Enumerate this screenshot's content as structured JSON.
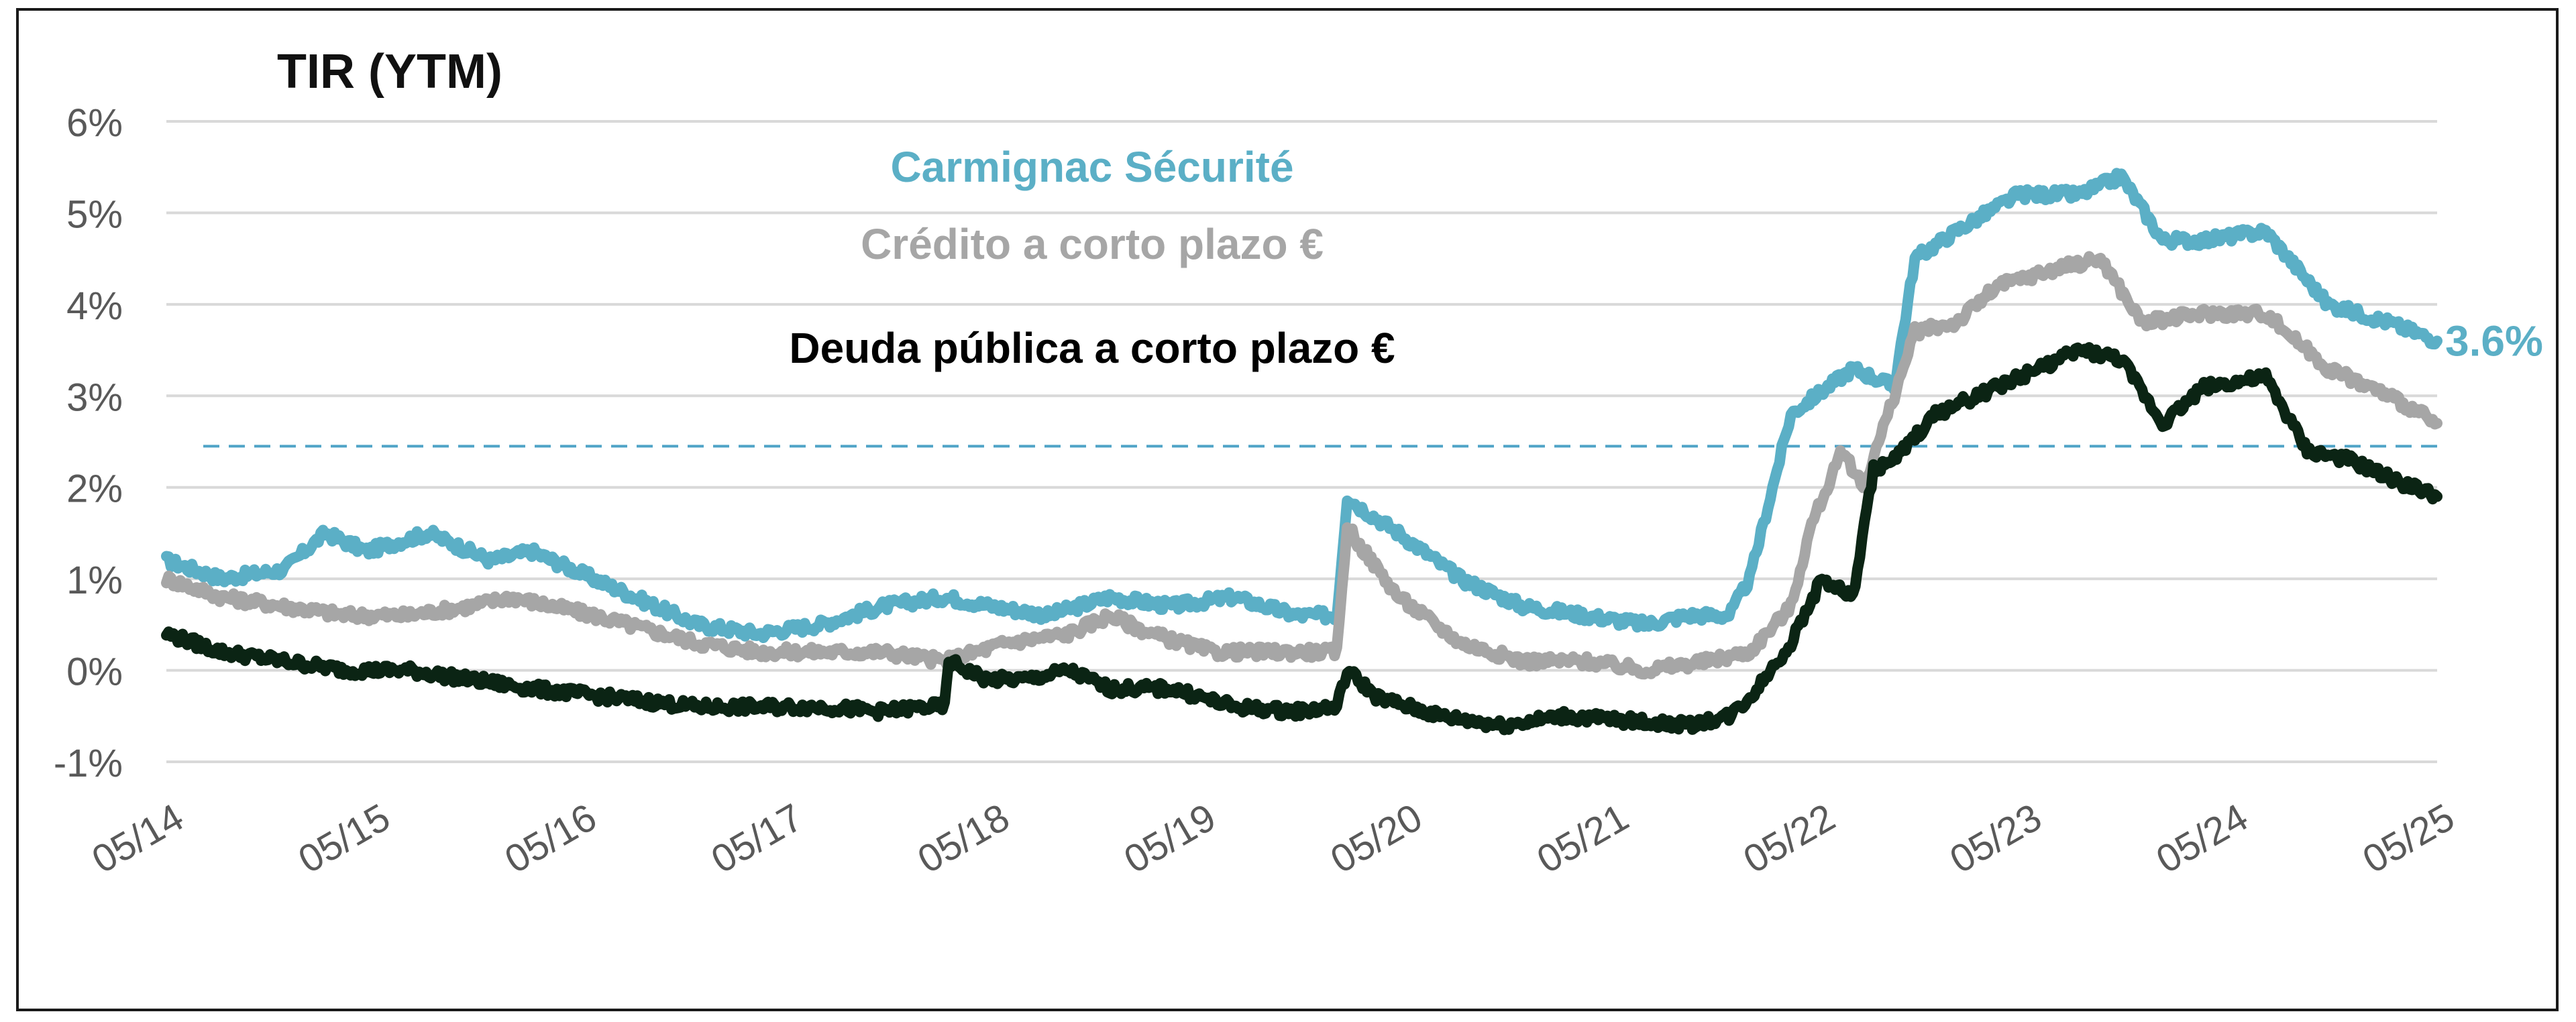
{
  "chart_data": {
    "type": "line",
    "title": "TIR (YTM)",
    "xlabel": "",
    "ylabel": "",
    "x_ticks": [
      "05/14",
      "05/15",
      "05/16",
      "05/17",
      "05/18",
      "05/19",
      "05/20",
      "05/21",
      "05/22",
      "05/23",
      "05/24",
      "05/25"
    ],
    "y_ticks": [
      "-1%",
      "0%",
      "1%",
      "2%",
      "3%",
      "4%",
      "5%",
      "6%"
    ],
    "ylim": [
      -1,
      6
    ],
    "xlim": [
      2014.33,
      2025.33
    ],
    "grid": true,
    "reference_line": {
      "value": 2.45,
      "style": "dashed",
      "color": "#4fa3c7"
    },
    "end_label": "3.6%",
    "series": [
      {
        "name": "Carmignac Sécurité",
        "color": "#5bafc6",
        "x": [
          2014.33,
          2014.6,
          2014.9,
          2015.1,
          2015.3,
          2015.6,
          2015.9,
          2016.1,
          2016.5,
          2016.9,
          2017.2,
          2017.5,
          2017.8,
          2018.1,
          2018.33,
          2018.6,
          2018.9,
          2019.2,
          2019.5,
          2019.8,
          2020.0,
          2020.05,
          2020.1,
          2020.3,
          2020.6,
          2020.9,
          2021.2,
          2021.5,
          2021.7,
          2021.9,
          2022.0,
          2022.2,
          2022.5,
          2022.7,
          2022.8,
          2023.0,
          2023.3,
          2023.6,
          2023.8,
          2024.0,
          2024.2,
          2024.5,
          2024.8,
          2025.1,
          2025.33
        ],
        "y": [
          1.2,
          1.0,
          1.1,
          1.5,
          1.3,
          1.5,
          1.2,
          1.3,
          0.9,
          0.5,
          0.4,
          0.5,
          0.7,
          0.8,
          0.7,
          0.6,
          0.8,
          0.7,
          0.8,
          0.6,
          0.6,
          1.9,
          1.8,
          1.5,
          1.0,
          0.7,
          0.6,
          0.5,
          0.6,
          0.6,
          1.0,
          2.8,
          3.3,
          3.1,
          4.5,
          4.8,
          5.2,
          5.2,
          5.4,
          4.7,
          4.7,
          4.8,
          4.0,
          3.8,
          3.6
        ]
      },
      {
        "name": "Crédito a corto plazo  €",
        "color": "#a6a6a6",
        "x": [
          2014.33,
          2014.6,
          2014.9,
          2015.2,
          2015.5,
          2015.8,
          2016.0,
          2016.4,
          2016.9,
          2017.2,
          2017.5,
          2017.8,
          2018.1,
          2018.4,
          2018.7,
          2018.9,
          2019.1,
          2019.4,
          2019.6,
          2019.8,
          2020.0,
          2020.05,
          2020.1,
          2020.3,
          2020.6,
          2020.9,
          2021.2,
          2021.5,
          2021.8,
          2022.0,
          2022.2,
          2022.3,
          2022.45,
          2022.55,
          2022.7,
          2022.8,
          2023.0,
          2023.2,
          2023.5,
          2023.7,
          2023.9,
          2024.2,
          2024.5,
          2024.8,
          2025.1,
          2025.33
        ],
        "y": [
          1.0,
          0.8,
          0.7,
          0.6,
          0.6,
          0.7,
          0.8,
          0.6,
          0.3,
          0.2,
          0.2,
          0.2,
          0.1,
          0.3,
          0.4,
          0.6,
          0.4,
          0.2,
          0.2,
          0.2,
          0.2,
          1.6,
          1.4,
          0.8,
          0.3,
          0.1,
          0.1,
          0.0,
          0.1,
          0.2,
          0.7,
          1.6,
          2.4,
          2.0,
          3.0,
          3.7,
          3.8,
          4.2,
          4.4,
          4.5,
          3.8,
          3.9,
          3.9,
          3.3,
          3.0,
          2.7
        ]
      },
      {
        "name": "Deuda pública a corto plazo €",
        "color": "#0b2414",
        "x": [
          2014.33,
          2014.6,
          2014.9,
          2015.2,
          2015.5,
          2015.8,
          2016.1,
          2016.5,
          2016.9,
          2017.2,
          2017.5,
          2017.8,
          2018.0,
          2018.1,
          2018.12,
          2018.3,
          2018.5,
          2018.7,
          2018.9,
          2019.2,
          2019.5,
          2019.8,
          2020.0,
          2020.05,
          2020.2,
          2020.5,
          2020.8,
          2021.1,
          2021.4,
          2021.7,
          2021.9,
          2022.0,
          2022.2,
          2022.35,
          2022.5,
          2022.6,
          2022.7,
          2022.9,
          2023.1,
          2023.4,
          2023.6,
          2023.8,
          2024.0,
          2024.2,
          2024.5,
          2024.7,
          2024.9,
          2025.1,
          2025.33
        ],
        "y": [
          0.4,
          0.2,
          0.1,
          0.0,
          0.0,
          -0.1,
          -0.2,
          -0.3,
          -0.4,
          -0.4,
          -0.4,
          -0.45,
          -0.4,
          -0.4,
          0.1,
          -0.1,
          -0.1,
          0.0,
          -0.2,
          -0.2,
          -0.4,
          -0.45,
          -0.4,
          0.0,
          -0.3,
          -0.5,
          -0.6,
          -0.5,
          -0.55,
          -0.6,
          -0.5,
          -0.3,
          0.3,
          1.0,
          0.8,
          2.2,
          2.3,
          2.8,
          3.0,
          3.3,
          3.5,
          3.4,
          2.7,
          3.1,
          3.2,
          2.4,
          2.3,
          2.1,
          1.9
        ]
      }
    ],
    "legend": [
      {
        "label": "Carmignac Sécurité",
        "color": "#5bafc6"
      },
      {
        "label": "Crédito a corto plazo  €",
        "color": "#a6a6a6"
      },
      {
        "label": "Deuda pública a corto plazo €",
        "color": "#000000"
      }
    ]
  }
}
